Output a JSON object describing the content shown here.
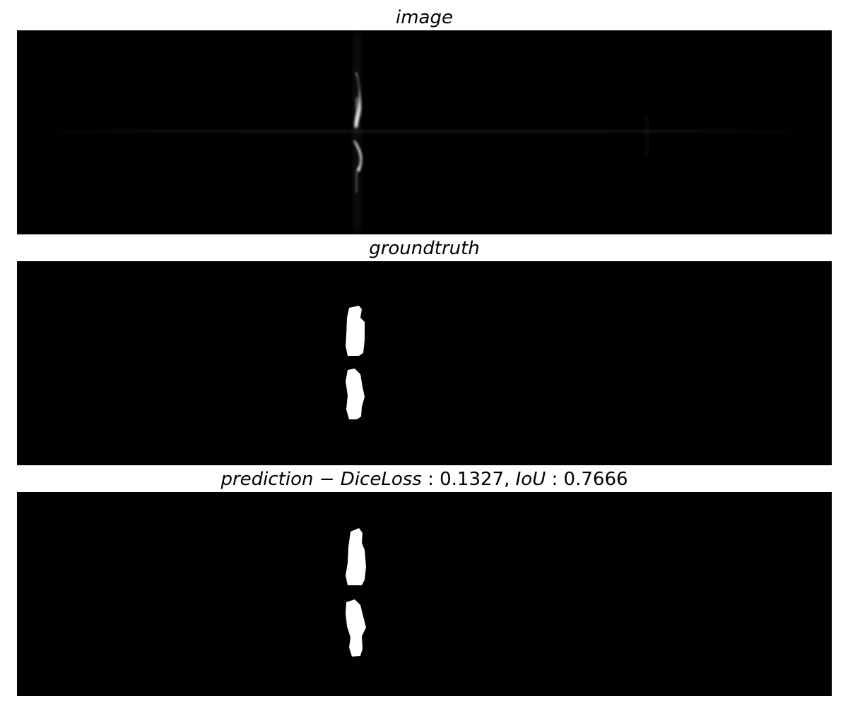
{
  "panels": {
    "image": {
      "title": "image"
    },
    "groundtruth": {
      "title": "groundtruth"
    },
    "prediction": {
      "title_prefix": "prediction",
      "title_sep": " − ",
      "metric1_label": "DiceLoss",
      "metric1_colon": " : ",
      "metric1_value": "0.1327",
      "metric_sep": ", ",
      "metric2_label": "IoU",
      "metric2_colon": " : ",
      "metric2_value": "0.7666"
    }
  },
  "colors": {
    "background": "#ffffff",
    "panel": "#000000",
    "mask": "#ffffff"
  }
}
